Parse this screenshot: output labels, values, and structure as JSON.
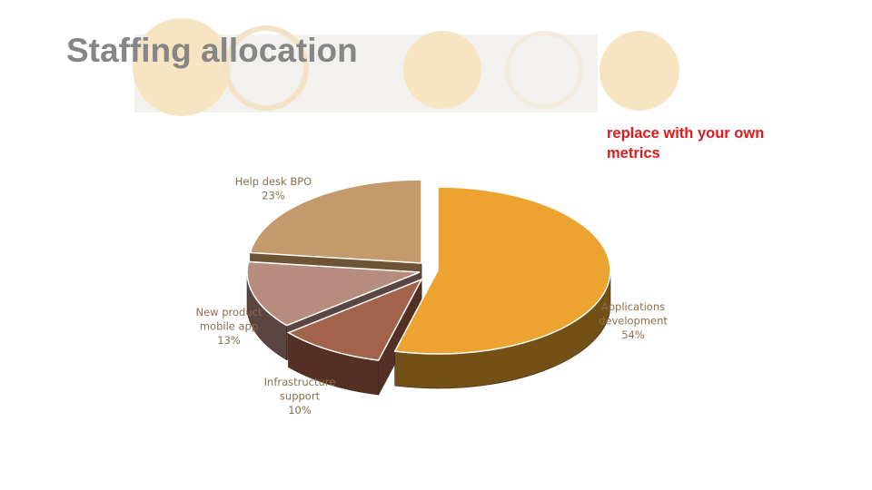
{
  "slide": {
    "title": "Staffing allocation",
    "note": "replace with your own metrics"
  },
  "chart_data": {
    "type": "pie",
    "style": "3d-exploded",
    "title": "",
    "slices": [
      {
        "name": "Applications development",
        "value": 54,
        "label_lines": [
          "Applications",
          "development",
          "54%"
        ],
        "top_color": "#eda32f",
        "side_color": "#735116"
      },
      {
        "name": "Infrastructure support",
        "value": 10,
        "label_lines": [
          "Infrastructure",
          "support",
          "10%"
        ],
        "top_color": "#a2634a",
        "side_color": "#542f24"
      },
      {
        "name": "New product mobile app",
        "value": 13,
        "label_lines": [
          "New product",
          "mobile app",
          "13%"
        ],
        "top_color": "#b68c7e",
        "side_color": "#5a4541"
      },
      {
        "name": "Help desk BPO",
        "value": 23,
        "label_lines": [
          "Help desk BPO",
          "23%"
        ],
        "top_color": "#c49a6c",
        "side_color": "#6e5334"
      }
    ]
  },
  "colors": {
    "title": "#868686",
    "note": "#e0191a",
    "label": "#8b6d4b",
    "deco_circle": "#f5dfb8"
  }
}
